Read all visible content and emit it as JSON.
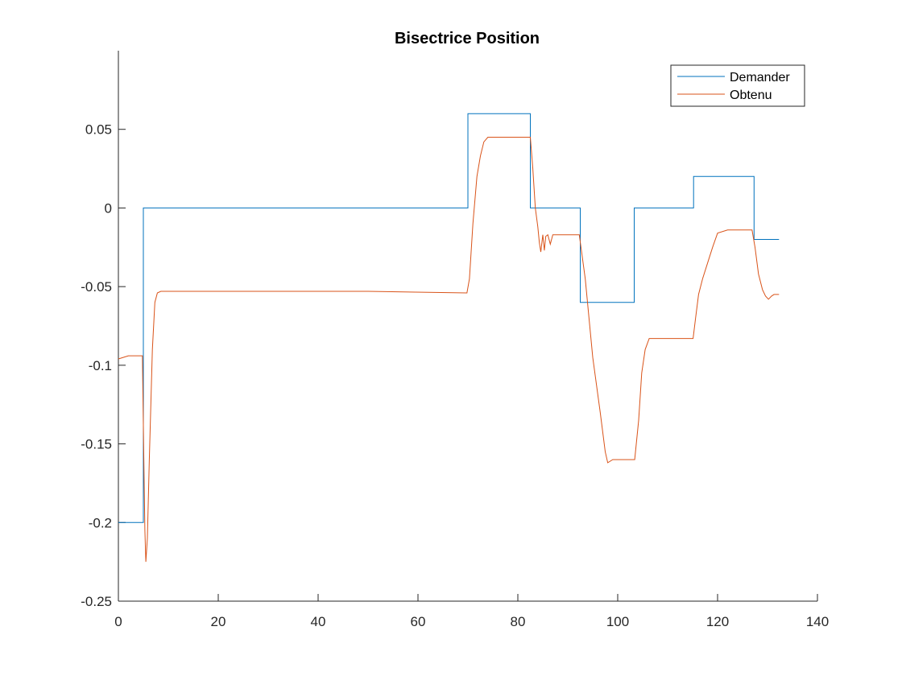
{
  "chart_data": {
    "type": "line",
    "title": "Bisectrice Position",
    "xlabel": "",
    "ylabel": "",
    "xlim": [
      0,
      140
    ],
    "ylim": [
      -0.25,
      0.1
    ],
    "xticks": [
      0,
      20,
      40,
      60,
      80,
      100,
      120,
      140
    ],
    "xtick_labels": [
      "0",
      "20",
      "40",
      "60",
      "80",
      "100",
      "120",
      "140"
    ],
    "yticks": [
      -0.25,
      -0.2,
      -0.15,
      -0.1,
      -0.05,
      0,
      0.05
    ],
    "ytick_labels": [
      "-0.25",
      "-0.2",
      "-0.15",
      "-0.1",
      "-0.05",
      "0",
      "0.05"
    ],
    "grid": false,
    "legend_position": "top-right",
    "series": [
      {
        "name": "Demander",
        "color": "#0072BD",
        "x": [
          0,
          5,
          5,
          70,
          70,
          82.5,
          82.5,
          92.5,
          92.5,
          103.3,
          103.3,
          115.2,
          115.2,
          127.3,
          127.3,
          132.3
        ],
        "y": [
          -0.2,
          -0.2,
          0,
          0,
          0.06,
          0.06,
          0,
          0,
          -0.06,
          -0.06,
          0,
          0,
          0.02,
          0.02,
          -0.02,
          -0.02
        ]
      },
      {
        "name": "Obtenu",
        "color": "#D95319",
        "x": [
          0,
          2,
          4.8,
          5.1,
          5.3,
          5.5,
          5.8,
          6.2,
          6.8,
          7.3,
          7.8,
          8.5,
          30,
          50,
          69.8,
          70.3,
          71,
          71.8,
          72.5,
          73.2,
          74,
          76,
          78,
          80,
          82.5,
          83,
          83.5,
          84,
          84.3,
          84.6,
          85,
          85.3,
          85.6,
          86,
          86.5,
          87,
          88,
          90,
          92.3,
          93.5,
          95,
          96.5,
          97.5,
          98,
          99,
          101,
          103.4,
          104.2,
          104.8,
          105.5,
          106.3,
          108,
          112,
          115.1,
          115.6,
          116.2,
          117,
          118,
          119,
          120,
          122,
          124,
          126.9,
          127.5,
          128.2,
          129,
          129.6,
          130.2,
          130.8,
          131.3,
          132.3
        ],
        "y": [
          -0.096,
          -0.094,
          -0.094,
          -0.16,
          -0.205,
          -0.225,
          -0.21,
          -0.16,
          -0.09,
          -0.06,
          -0.054,
          -0.053,
          -0.053,
          -0.053,
          -0.054,
          -0.045,
          -0.01,
          0.02,
          0.033,
          0.042,
          0.045,
          0.045,
          0.045,
          0.045,
          0.045,
          0.025,
          0.0,
          -0.012,
          -0.022,
          -0.028,
          -0.017,
          -0.027,
          -0.018,
          -0.017,
          -0.023,
          -0.017,
          -0.017,
          -0.017,
          -0.017,
          -0.045,
          -0.095,
          -0.13,
          -0.155,
          -0.162,
          -0.16,
          -0.16,
          -0.16,
          -0.135,
          -0.105,
          -0.09,
          -0.083,
          -0.083,
          -0.083,
          -0.083,
          -0.07,
          -0.055,
          -0.045,
          -0.035,
          -0.025,
          -0.016,
          -0.014,
          -0.014,
          -0.014,
          -0.025,
          -0.042,
          -0.052,
          -0.056,
          -0.058,
          -0.056,
          -0.055,
          -0.055
        ]
      }
    ]
  }
}
